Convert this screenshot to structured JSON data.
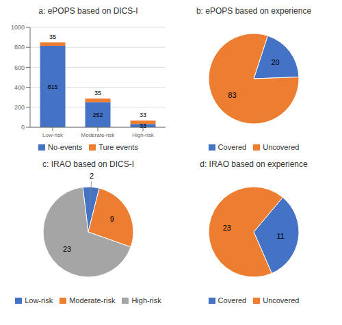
{
  "chart_data": [
    {
      "type": "bar",
      "title": "a: ePOPS based on DICS-I",
      "categories": [
        "Low-risk",
        "Moderate-risk",
        "High-risk"
      ],
      "series": [
        {
          "name": "No-events",
          "color": "#4472C4",
          "values": [
            815,
            252,
            33
          ]
        },
        {
          "name": "Ture events",
          "color": "#ED7D31",
          "values": [
            35,
            35,
            33
          ]
        }
      ],
      "stacked": true,
      "ylim": [
        0,
        1000
      ],
      "yticks": [
        0,
        200,
        400,
        600,
        800,
        1000
      ],
      "grid": true,
      "data_labels": true,
      "legend": "bottom"
    },
    {
      "type": "pie",
      "title": "b: ePOPS based on experience",
      "categories": [
        "Covered",
        "Uncovered"
      ],
      "values": [
        20,
        83
      ],
      "colors": [
        "#4472C4",
        "#ED7D31"
      ],
      "data_labels": true,
      "legend": "bottom"
    },
    {
      "type": "pie",
      "title": "c: IRAO based on DICS-I",
      "categories": [
        "Low-risk",
        "Moderate-risk",
        "High-risk"
      ],
      "values": [
        2,
        9,
        23
      ],
      "colors": [
        "#4472C4",
        "#ED7D31",
        "#A5A5A5"
      ],
      "data_labels": true,
      "legend": "bottom"
    },
    {
      "type": "pie",
      "title": "d: IRAO based on experience",
      "categories": [
        "Covered",
        "Uncovered"
      ],
      "values": [
        11,
        23
      ],
      "colors": [
        "#4472C4",
        "#ED7D31"
      ],
      "data_labels": true,
      "legend": "bottom"
    }
  ]
}
